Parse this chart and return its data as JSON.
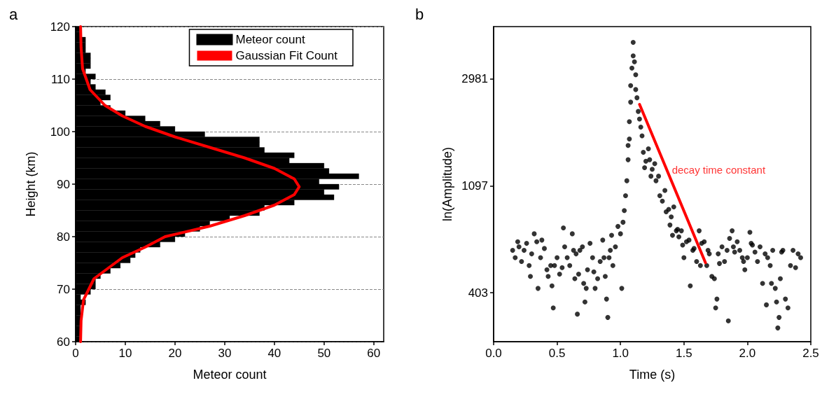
{
  "chart_data": [
    {
      "type": "histogram",
      "title": "a",
      "xlabel": "Meteor count",
      "ylabel": "Height (km)",
      "orientation": "horizontal",
      "xlim": [
        0,
        62
      ],
      "xticks": [
        0,
        10,
        20,
        30,
        40,
        50,
        60
      ],
      "ylim": [
        60,
        120
      ],
      "yticks": [
        60,
        70,
        80,
        90,
        100,
        110,
        120
      ],
      "grid": "y",
      "legend": "top right",
      "series": [
        {
          "name": "Meteor count",
          "color": "#000000",
          "bins": [
            60,
            61,
            62,
            63,
            64,
            65,
            66,
            67,
            68,
            69,
            70,
            71,
            72,
            73,
            74,
            75,
            76,
            77,
            78,
            79,
            80,
            81,
            82,
            83,
            84,
            85,
            86,
            87,
            88,
            89,
            90,
            91,
            92,
            93,
            94,
            95,
            96,
            97,
            98,
            99,
            100,
            101,
            102,
            103,
            104,
            105,
            106,
            107,
            108,
            109,
            110,
            111,
            112,
            113,
            114,
            115,
            116,
            117,
            118,
            119,
            120
          ],
          "values": [
            1,
            1,
            1,
            1,
            1,
            1,
            1,
            2,
            1,
            3,
            4,
            4,
            5,
            7,
            9,
            11,
            12,
            13,
            17,
            20,
            22,
            25,
            27,
            31,
            37,
            38,
            44,
            52,
            50,
            53,
            49,
            57,
            51,
            50,
            43,
            44,
            38,
            37,
            37,
            26,
            20,
            17,
            14,
            10,
            7,
            5,
            7,
            6,
            4,
            3,
            4,
            2,
            3,
            3,
            3,
            2,
            2,
            2,
            1,
            1
          ]
        },
        {
          "name": "Gaussian Fit Count",
          "type": "line",
          "color": "#ff0000",
          "x": [
            60,
            64,
            68,
            72,
            76,
            78,
            80,
            82,
            84,
            86,
            88,
            89.5,
            91,
            93,
            95,
            97,
            99,
            101,
            103,
            105,
            108,
            112,
            116,
            120
          ],
          "values": [
            1,
            1.1,
            1.6,
            3.7,
            9.4,
            14,
            18,
            27,
            34,
            40,
            44,
            45,
            44,
            40,
            34,
            27,
            20,
            14,
            9.4,
            5.9,
            2.9,
            1.4,
            1.1,
            1
          ]
        }
      ]
    },
    {
      "type": "scatter",
      "title": "b",
      "xlabel": "Time (s)",
      "ylabel": "ln(Amplitude)",
      "xlim": [
        0,
        2.5
      ],
      "xticks": [
        {
          "value": 0,
          "label": "0.0"
        },
        0.5,
        {
          "value": 1,
          "label": "1.0"
        },
        1.5,
        {
          "value": 2,
          "label": "2.0"
        },
        2.5
      ],
      "ylim": [
        255,
        4866
      ],
      "yticks": [
        403,
        1097,
        2981
      ],
      "log": "y",
      "marker": "circle",
      "annotations": [
        {
          "text": "decay time constant",
          "x": 1.4,
          "y": 1275
        }
      ],
      "series": [
        {
          "color": "#000000",
          "x": [
            0.15,
            0.17,
            0.19,
            0.2,
            0.22,
            0.24,
            0.26,
            0.28,
            0.29,
            0.3,
            0.32,
            0.34,
            0.35,
            0.37,
            0.38,
            0.4,
            0.42,
            0.43,
            0.45,
            0.46,
            0.47,
            0.48,
            0.5,
            0.52,
            0.54,
            0.55,
            0.56,
            0.58,
            0.6,
            0.62,
            0.63,
            0.64,
            0.65,
            0.66,
            0.67,
            0.68,
            0.7,
            0.71,
            0.72,
            0.73,
            0.74,
            0.76,
            0.78,
            0.79,
            0.8,
            0.82,
            0.84,
            0.86,
            0.87,
            0.88,
            0.89,
            0.9,
            0.91,
            0.92,
            0.93,
            0.94,
            0.96,
            0.98,
            1.0,
            1.01,
            1.02,
            1.03,
            1.04,
            1.05,
            1.06,
            1.06,
            1.07,
            1.07,
            1.08,
            1.08,
            1.09,
            1.1,
            1.1,
            1.11,
            1.12,
            1.12,
            1.13,
            1.14,
            1.15,
            1.16,
            1.17,
            1.18,
            1.19,
            1.2,
            1.22,
            1.23,
            1.24,
            1.25,
            1.27,
            1.28,
            1.3,
            1.31,
            1.33,
            1.35,
            1.36,
            1.38,
            1.39,
            1.4,
            1.41,
            1.42,
            1.44,
            1.45,
            1.46,
            1.48,
            1.49,
            1.5,
            1.52,
            1.54,
            1.55,
            1.57,
            1.58,
            1.6,
            1.62,
            1.63,
            1.64,
            1.66,
            1.68,
            1.69,
            1.7,
            1.72,
            1.74,
            1.75,
            1.76,
            1.77,
            1.78,
            1.8,
            1.82,
            1.84,
            1.85,
            1.86,
            1.88,
            1.89,
            1.9,
            1.92,
            1.94,
            1.96,
            1.97,
            1.98,
            2.0,
            2.02,
            2.03,
            2.04,
            2.06,
            2.08,
            2.1,
            2.12,
            2.14,
            2.15,
            2.16,
            2.18,
            2.19,
            2.2,
            2.22,
            2.23,
            2.24,
            2.25,
            2.26,
            2.27,
            2.28,
            2.3,
            2.32,
            2.34,
            2.36,
            2.38,
            2.4,
            2.42
          ],
          "values": [
            600,
            560,
            650,
            620,
            540,
            600,
            640,
            520,
            470,
            580,
            700,
            650,
            420,
            560,
            660,
            610,
            500,
            470,
            520,
            430,
            350,
            520,
            560,
            480,
            510,
            740,
            620,
            560,
            520,
            700,
            600,
            460,
            580,
            330,
            480,
            600,
            620,
            440,
            370,
            420,
            500,
            640,
            560,
            490,
            420,
            460,
            540,
            660,
            560,
            470,
            380,
            320,
            560,
            600,
            690,
            520,
            620,
            750,
            700,
            420,
            780,
            870,
            1000,
            1150,
            1400,
            1600,
            1700,
            2000,
            2400,
            2800,
            3300,
            3700,
            4200,
            3500,
            3100,
            2700,
            2500,
            2200,
            2050,
            1900,
            1750,
            1500,
            1300,
            1380,
            1550,
            1400,
            1200,
            1280,
            1350,
            1150,
            1200,
            1000,
            950,
            1050,
            860,
            880,
            760,
            820,
            690,
            900,
            720,
            730,
            680,
            720,
            630,
            560,
            650,
            660,
            430,
            600,
            610,
            540,
            720,
            520,
            640,
            650,
            520,
            600,
            580,
            470,
            460,
            350,
            380,
            580,
            530,
            620,
            540,
            600,
            310,
            670,
            720,
            620,
            590,
            650,
            600,
            560,
            540,
            500,
            560,
            710,
            640,
            630,
            590,
            540,
            620,
            440,
            580,
            360,
            560,
            520,
            440,
            600,
            420,
            370,
            290,
            320,
            460,
            590,
            600,
            380,
            350,
            520,
            600,
            510,
            580,
            560
          ]
        },
        {
          "type": "line",
          "color": "#ff0000",
          "marker": "none",
          "x": [
            1.15,
            1.67
          ],
          "values": [
            2350,
            534
          ]
        }
      ]
    }
  ]
}
